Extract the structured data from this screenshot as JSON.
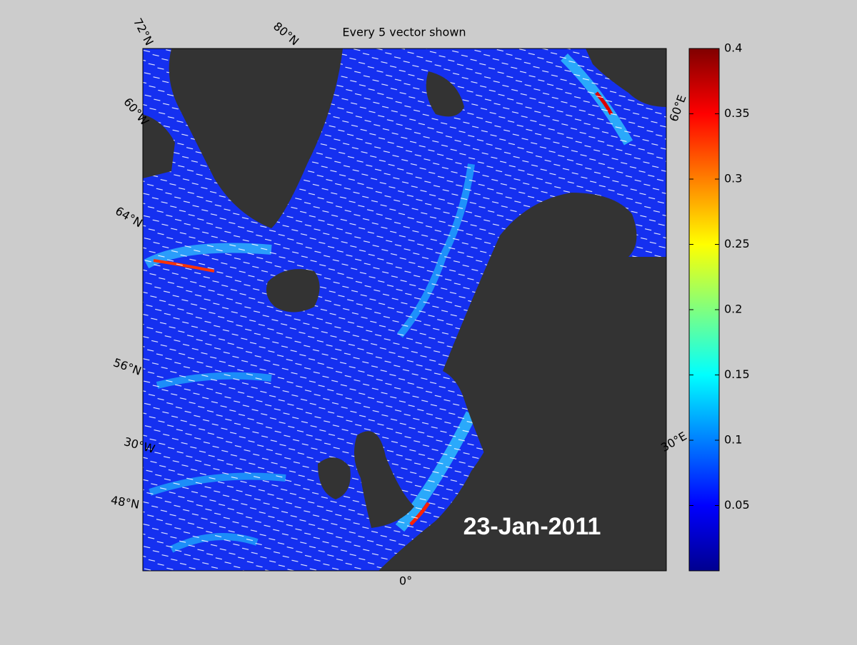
{
  "title": "Every 5 vector shown",
  "date_label": "23-Jan-2011",
  "graticule_labels": [
    "72°N",
    "80°N",
    "60°W",
    "64°N",
    "56°N",
    "30°W",
    "48°N",
    "0°",
    "30°E",
    "60°E"
  ],
  "colorbar": {
    "colormap": "jet",
    "lim": [
      0,
      0.4
    ],
    "ticks": [
      0.05,
      0.1,
      0.15,
      0.2,
      0.25,
      0.3,
      0.35,
      0.4
    ]
  }
}
